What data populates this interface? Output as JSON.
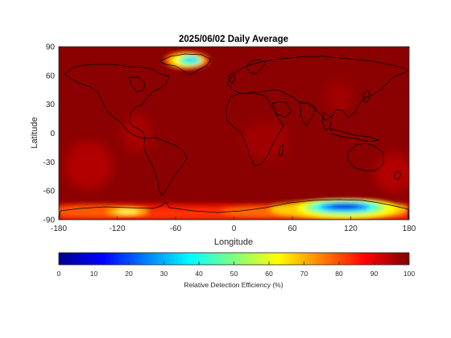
{
  "chart_data": {
    "type": "heatmap",
    "title": "2025/06/02 Daily Average",
    "xlabel": "Longitude",
    "ylabel": "Latitude",
    "xlim": [
      -180,
      180
    ],
    "ylim": [
      -90,
      90
    ],
    "xticks": [
      -180,
      -120,
      -60,
      0,
      60,
      120,
      180
    ],
    "yticks": [
      90,
      60,
      30,
      0,
      -30,
      -60,
      -90
    ],
    "colormap": "jet",
    "background_value": 100,
    "regions": [
      {
        "name": "Greenland",
        "lon_range": [
          -55,
          -20
        ],
        "lat_range": [
          62,
          80
        ],
        "min_value": 45
      },
      {
        "name": "Antarctica (East)",
        "lon_range": [
          80,
          160
        ],
        "lat_range": [
          -85,
          -68
        ],
        "min_value": 8
      },
      {
        "name": "Antarctica (West)",
        "lon_range": [
          -130,
          -100
        ],
        "lat_range": [
          -82,
          -74
        ],
        "min_value": 60
      },
      {
        "name": "Southern Ocean band",
        "lon_range": [
          -180,
          180
        ],
        "lat_range": [
          -90,
          -65
        ],
        "min_value": 75
      }
    ],
    "colorbar": {
      "label": "Relative Detection Efficiency (%)",
      "ticks": [
        0,
        10,
        20,
        30,
        40,
        50,
        60,
        70,
        80,
        90,
        100
      ],
      "range": [
        0,
        100
      ]
    }
  }
}
